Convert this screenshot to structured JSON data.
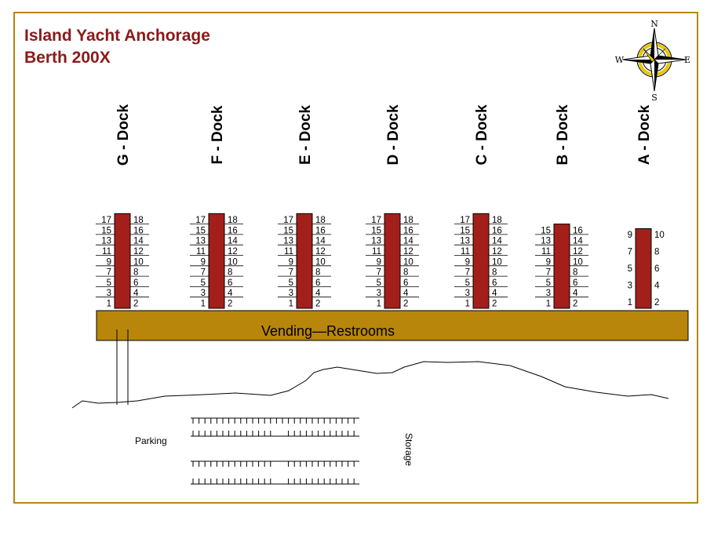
{
  "header": {
    "title": "Island Yacht Anchorage",
    "subtitle": "Berth 200X"
  },
  "compass": {
    "n": "N",
    "s": "S",
    "e": "E",
    "w": "W"
  },
  "colors": {
    "frame": "#b8860b",
    "title": "#8b1a1a",
    "dock": "#a31f1a",
    "walkway": "#b8860b",
    "compass_ring": "#e6c800"
  },
  "docks": [
    {
      "label": "G - Dock",
      "left": [
        "17",
        "15",
        "13",
        "11",
        "9",
        "7",
        "5",
        "3",
        "1"
      ],
      "right": [
        "18",
        "16",
        "14",
        "12",
        "10",
        "8",
        "6",
        "4",
        "2"
      ]
    },
    {
      "label": "F - Dock",
      "left": [
        "17",
        "15",
        "13",
        "11",
        "9",
        "7",
        "5",
        "3",
        "1"
      ],
      "right": [
        "18",
        "16",
        "14",
        "12",
        "10",
        "8",
        "6",
        "4",
        "2"
      ]
    },
    {
      "label": "E - Dock",
      "left": [
        "17",
        "15",
        "13",
        "11",
        "9",
        "7",
        "5",
        "3",
        "1"
      ],
      "right": [
        "18",
        "16",
        "14",
        "12",
        "10",
        "8",
        "6",
        "4",
        "2"
      ]
    },
    {
      "label": "D - Dock",
      "left": [
        "17",
        "15",
        "13",
        "11",
        "9",
        "7",
        "5",
        "3",
        "1"
      ],
      "right": [
        "18",
        "16",
        "14",
        "12",
        "10",
        "8",
        "6",
        "4",
        "2"
      ]
    },
    {
      "label": "C - Dock",
      "left": [
        "17",
        "15",
        "13",
        "11",
        "9",
        "7",
        "5",
        "3",
        "1"
      ],
      "right": [
        "18",
        "16",
        "14",
        "12",
        "10",
        "8",
        "6",
        "4",
        "2"
      ]
    },
    {
      "label": "B - Dock",
      "left": [
        "15",
        "13",
        "11",
        "9",
        "7",
        "5",
        "3",
        "1"
      ],
      "right": [
        "16",
        "14",
        "12",
        "10",
        "8",
        "6",
        "4",
        "2"
      ]
    },
    {
      "label": "A - Dock",
      "left": [
        "9",
        "7",
        "5",
        "3",
        "1"
      ],
      "right": [
        "10",
        "8",
        "6",
        "4",
        "2"
      ]
    }
  ],
  "walkway": {
    "label": "Vending—Restrooms"
  },
  "areas": {
    "parking": "Parking",
    "storage": "Storage"
  }
}
